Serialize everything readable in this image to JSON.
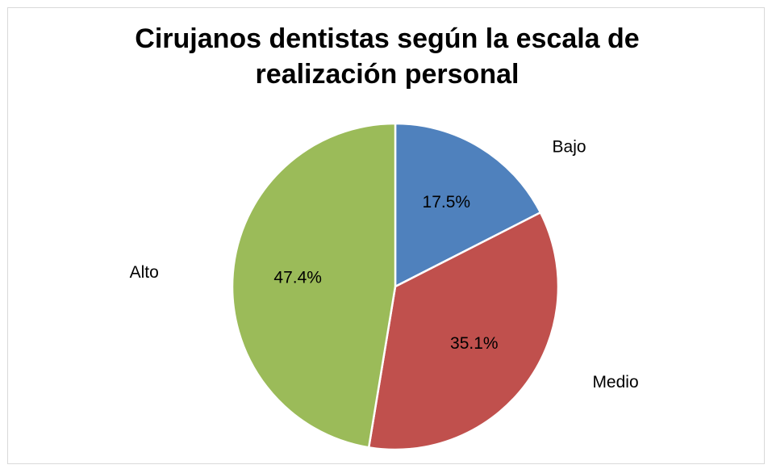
{
  "chart_data": {
    "type": "pie",
    "title": "Cirujanos dentistas según la escala de realización personal",
    "categories": [
      "Bajo",
      "Medio",
      "Alto"
    ],
    "values": [
      17.5,
      35.1,
      47.4
    ],
    "value_labels": [
      "17.5%",
      "35.1%",
      "47.4%"
    ],
    "colors": [
      "#4f81bd",
      "#c0504d",
      "#9bbb59"
    ]
  }
}
